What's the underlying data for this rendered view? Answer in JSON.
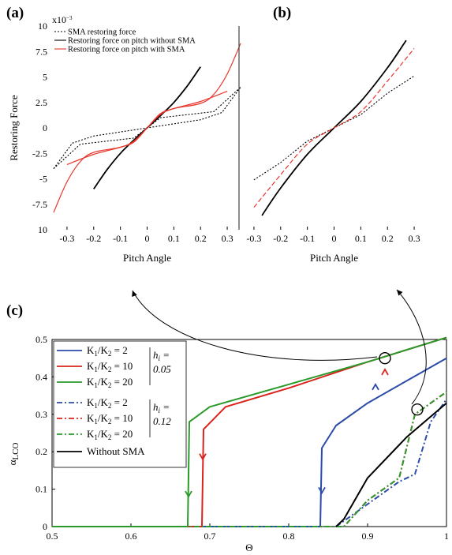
{
  "panels": {
    "a": {
      "label": "(a)"
    },
    "b": {
      "label": "(b)"
    },
    "c": {
      "label": "(c)"
    }
  },
  "chart_data": [
    {
      "panel": "(a)",
      "type": "line",
      "xlabel": "Pitch Angle",
      "ylabel": "Restoring Force",
      "y_multiplier": "x10",
      "y_multiplier_exp": "−3",
      "xlim": [
        -0.35,
        0.35
      ],
      "ylim": [
        -10,
        10
      ],
      "x_ticks": [
        "-0.3",
        "-0.2",
        "-0.1",
        "0",
        "0.1",
        "0.2",
        "0.3"
      ],
      "y_ticks": [
        "10",
        "7.5",
        "5",
        "2.5",
        "0",
        "-2.5",
        "-5",
        "-7.5",
        "10"
      ],
      "legend": [
        {
          "label": "SMA restoring force",
          "color": "#000000",
          "dash": "dotted"
        },
        {
          "label": "Restoring force on pitch without SMA",
          "color": "#000000",
          "dash": "solid"
        },
        {
          "label": "Restoring force on pitch with SMA",
          "color": "#e8352a",
          "dash": "solid"
        }
      ],
      "series": [
        {
          "name": "Restoring force on pitch without SMA",
          "color": "#000000",
          "dash": "solid",
          "x": [
            -0.2,
            -0.15,
            -0.1,
            -0.05,
            0,
            0.05,
            0.1,
            0.15,
            0.2
          ],
          "y": [
            -6.0,
            -4.1,
            -2.5,
            -1.2,
            0,
            1.2,
            2.5,
            4.1,
            6.0
          ]
        },
        {
          "name": "SMA restoring force",
          "color": "#000000",
          "dash": "dotted",
          "x": [
            -0.35,
            -0.28,
            -0.2,
            0.2,
            0.28,
            0.35
          ],
          "y": [
            -4.0,
            -1.5,
            -0.8,
            0.8,
            1.5,
            4.0
          ]
        },
        {
          "name": "SMA restoring force",
          "color": "#000000",
          "dash": "dotted",
          "x": [
            -0.35,
            -0.25,
            -0.05,
            0,
            0.05,
            0.25,
            0.35
          ],
          "y": [
            -4.0,
            -1.6,
            -1.0,
            0,
            1.0,
            1.6,
            4.0
          ]
        },
        {
          "name": "Restoring force on pitch with SMA",
          "color": "#e8352a",
          "dash": "solid",
          "x": [
            -0.35,
            -0.3,
            -0.25,
            -0.2,
            -0.1,
            -0.05,
            0,
            0.05,
            0.1,
            0.2,
            0.25,
            0.3,
            0.35
          ],
          "y": [
            -8.3,
            -5.3,
            -3.3,
            -2.4,
            -1.9,
            -1.3,
            0,
            1.3,
            1.9,
            2.4,
            3.3,
            5.3,
            8.3
          ]
        },
        {
          "name": "Restoring force on pitch with SMA",
          "color": "#e8352a",
          "dash": "solid",
          "x": [
            -0.3,
            -0.2,
            -0.1,
            -0.05,
            0,
            0.05,
            0.1,
            0.2,
            0.3
          ],
          "y": [
            -3.6,
            -2.6,
            -1.9,
            -1.4,
            0,
            1.4,
            1.9,
            2.6,
            3.6
          ]
        }
      ]
    },
    {
      "panel": "(b)",
      "type": "line",
      "xlabel": "Pitch Angle",
      "ylabel": "",
      "xlim": [
        -0.35,
        0.35
      ],
      "ylim": [
        -10,
        10
      ],
      "x_ticks": [
        "-0.3",
        "-0.2",
        "-0.1",
        "0",
        "0.1",
        "0.2",
        "0.3"
      ],
      "series": [
        {
          "color": "#000000",
          "dash": "solid",
          "x": [
            -0.27,
            -0.2,
            -0.1,
            0,
            0.1,
            0.2,
            0.27
          ],
          "y": [
            -8.6,
            -5.9,
            -2.6,
            0,
            2.6,
            5.9,
            8.6
          ]
        },
        {
          "color": "#000000",
          "dash": "dotted",
          "x": [
            -0.3,
            -0.2,
            -0.1,
            0,
            0.1,
            0.2,
            0.3
          ],
          "y": [
            -5.1,
            -3.4,
            -1.3,
            0,
            1.3,
            3.4,
            5.1
          ]
        },
        {
          "color": "#e8352a",
          "dash": "dashed",
          "x": [
            -0.3,
            -0.2,
            -0.1,
            0,
            0.1,
            0.2,
            0.3
          ],
          "y": [
            -7.8,
            -4.6,
            -1.6,
            0,
            1.6,
            4.6,
            7.8
          ]
        }
      ]
    },
    {
      "panel": "(c)",
      "type": "line",
      "xlabel": "Θ",
      "ylabel": "α",
      "ylabel_sub": "LCO",
      "xlim": [
        0.5,
        1.0
      ],
      "ylim": [
        0,
        0.5
      ],
      "x_ticks": [
        "0.5",
        "0.6",
        "0.7",
        "0.8",
        "0.9",
        "1"
      ],
      "y_ticks": [
        "0",
        "0.1",
        "0.2",
        "0.3",
        "0.4",
        "0.5"
      ],
      "series": [
        {
          "name": "K1/K2 = 2, h = 0.05",
          "color": "#2b4ba8",
          "dash": "solid",
          "x": [
            0.5,
            0.84,
            0.842,
            0.86,
            0.9,
            0.95,
            1.0
          ],
          "y": [
            0,
            0,
            0.21,
            0.27,
            0.33,
            0.39,
            0.45
          ]
        },
        {
          "name": "K1/K2 = 10, h = 0.05",
          "color": "#d9231c",
          "dash": "solid",
          "x": [
            0.5,
            0.69,
            0.692,
            0.72,
            0.8,
            0.9,
            1.0
          ],
          "y": [
            0,
            0,
            0.26,
            0.32,
            0.37,
            0.44,
            0.505
          ]
        },
        {
          "name": "K1/K2 = 20, h = 0.05",
          "color": "#2a9a2a",
          "dash": "solid",
          "x": [
            0.5,
            0.672,
            0.674,
            0.7,
            0.8,
            0.9,
            1.0
          ],
          "y": [
            0,
            0,
            0.28,
            0.32,
            0.38,
            0.44,
            0.505
          ]
        },
        {
          "name": "K1/K2 = 2, h = 0.12",
          "color": "#2b4ba8",
          "dash": "dashdot",
          "x": [
            0.5,
            0.86,
            0.9,
            0.94,
            0.96,
            0.98,
            1.0
          ],
          "y": [
            0,
            0,
            0.06,
            0.12,
            0.14,
            0.28,
            0.34
          ]
        },
        {
          "name": "K1/K2 = 10, h = 0.12",
          "color": "#d9231c",
          "dash": "dashdot",
          "x": [
            0.5,
            0.87,
            0.9,
            0.94,
            0.96,
            0.98,
            1.0
          ],
          "y": [
            0,
            0,
            0.07,
            0.13,
            0.3,
            0.33,
            0.36
          ]
        },
        {
          "name": "K1/K2 = 20, h = 0.12",
          "color": "#2a9a2a",
          "dash": "dashdot",
          "x": [
            0.5,
            0.87,
            0.9,
            0.94,
            0.96,
            0.98,
            1.0
          ],
          "y": [
            0,
            0,
            0.07,
            0.13,
            0.3,
            0.33,
            0.36
          ]
        },
        {
          "name": "Without SMA",
          "color": "#000000",
          "dash": "solid",
          "x": [
            0.86,
            0.87,
            0.9,
            0.95,
            1.0
          ],
          "y": [
            0,
            0.02,
            0.13,
            0.24,
            0.33
          ]
        }
      ],
      "legend": {
        "ratio_prefix": "K",
        "sub1": "1",
        "sep": "/K",
        "sub2": "2",
        "items": [
          {
            "value": " = 2",
            "color": "#2b4ba8",
            "dash": "solid"
          },
          {
            "value": " = 10",
            "color": "#d9231c",
            "dash": "solid"
          },
          {
            "value": " = 20",
            "color": "#2a9a2a",
            "dash": "solid"
          },
          {
            "value": " = 2",
            "color": "#2b4ba8",
            "dash": "dashdot"
          },
          {
            "value": " = 10",
            "color": "#d9231c",
            "dash": "dashdot"
          },
          {
            "value": " = 20",
            "color": "#2a9a2a",
            "dash": "dashdot"
          },
          {
            "label": "Without SMA",
            "color": "#000000",
            "dash": "solid"
          }
        ],
        "h_letter": "h",
        "h_sub": "i",
        "h_eq": " =",
        "h1_value": "0.05",
        "h2_value": "0.12"
      }
    }
  ]
}
